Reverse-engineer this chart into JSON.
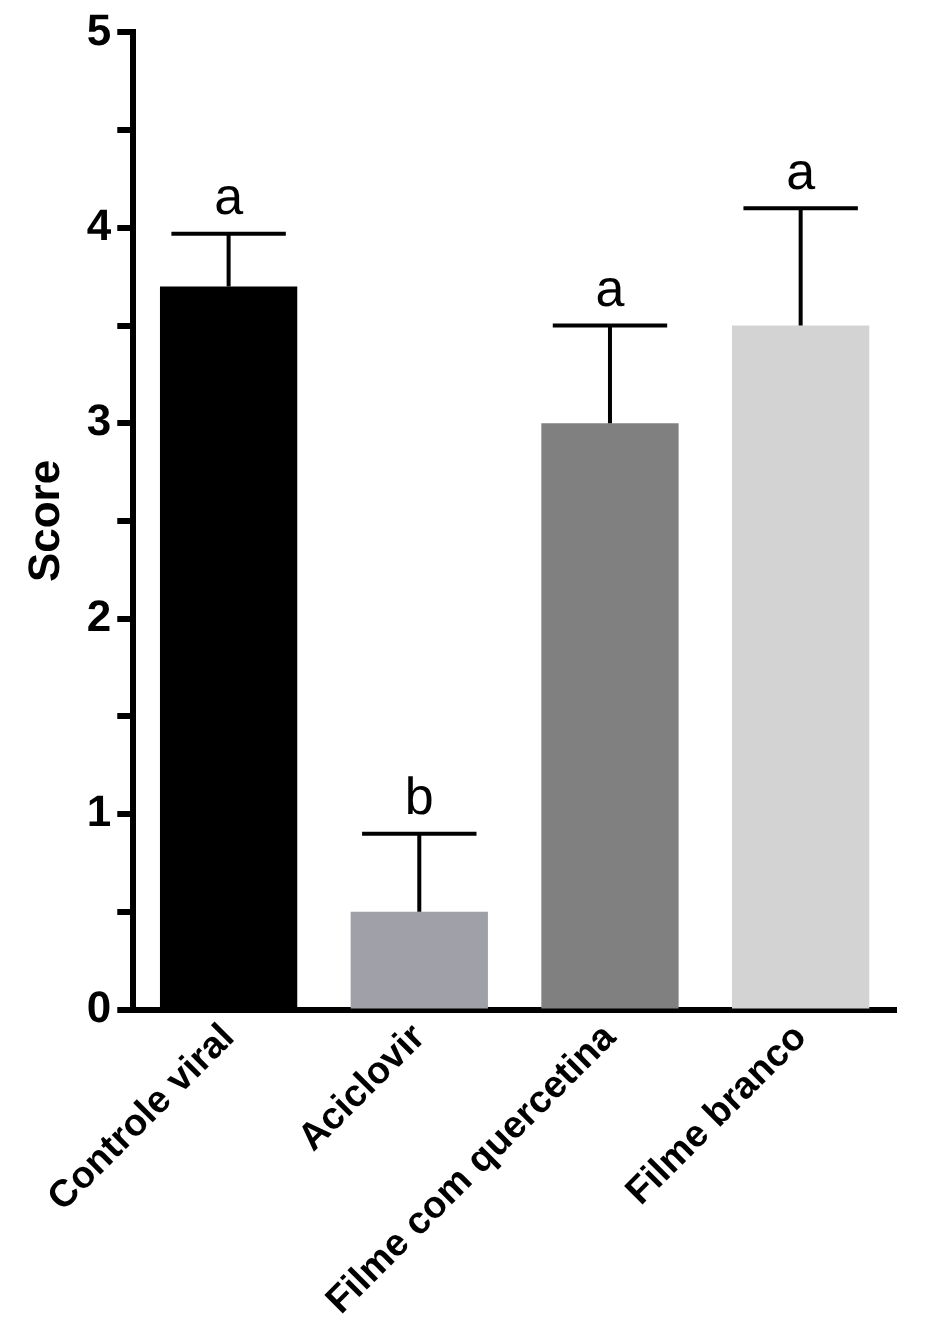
{
  "chart_data": {
    "type": "bar",
    "ylabel": "Score",
    "categories": [
      "Controle viral",
      "Aciclovir",
      "Filme com quercetina",
      "Filme branco"
    ],
    "values": [
      3.7,
      0.5,
      3.0,
      3.5
    ],
    "colors": [
      "#000000",
      "#a0a0a8",
      "#808080",
      "#d3d3d3"
    ],
    "errors": [
      [
        3.7,
        3.97
      ],
      [
        0.5,
        0.9
      ],
      [
        3.0,
        3.5
      ],
      [
        3.5,
        4.1
      ]
    ],
    "ylim": [
      0,
      5
    ],
    "yticks": [
      0,
      {
        "value": 0.5,
        "label": null
      },
      1,
      {
        "value": 1.5,
        "label": null
      },
      2,
      {
        "value": 2.5,
        "label": null
      },
      3,
      {
        "value": 3.5,
        "label": null
      },
      4,
      {
        "value": 4.5,
        "label": null
      },
      5
    ],
    "annotations": [
      "a",
      "b",
      "a",
      "a"
    ],
    "grid": false,
    "legend": false
  }
}
